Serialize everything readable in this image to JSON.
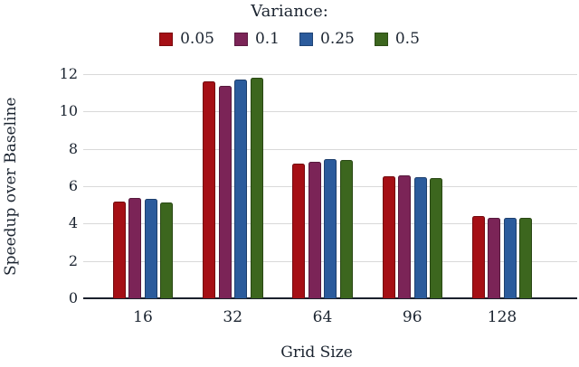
{
  "chart_data": {
    "type": "bar",
    "legend_title": "Variance:",
    "xlabel": "Grid Size",
    "ylabel": "Speedup over Baseline",
    "categories": [
      "16",
      "32",
      "64",
      "96",
      "128"
    ],
    "series": [
      {
        "name": "0.05",
        "color": "#a50f15",
        "values": [
          5.2,
          11.6,
          7.2,
          6.55,
          4.4
        ]
      },
      {
        "name": "0.1",
        "color": "#7b2457",
        "values": [
          5.35,
          11.35,
          7.3,
          6.6,
          4.3
        ]
      },
      {
        "name": "0.25",
        "color": "#2b5b9c",
        "values": [
          5.3,
          11.7,
          7.45,
          6.5,
          4.3
        ]
      },
      {
        "name": "0.5",
        "color": "#3c661e",
        "values": [
          5.15,
          11.8,
          7.4,
          6.45,
          4.3
        ]
      }
    ],
    "ylim": [
      0,
      12
    ],
    "ytick_step": 2,
    "yticks": [
      0,
      2,
      4,
      6,
      8,
      10,
      12
    ],
    "grid": "horizontal",
    "legend_position": "top"
  },
  "colors": {
    "background": "#ffffff",
    "grid": "#d9d9d9",
    "axis": "#1a202c",
    "text": "#1b2430"
  }
}
